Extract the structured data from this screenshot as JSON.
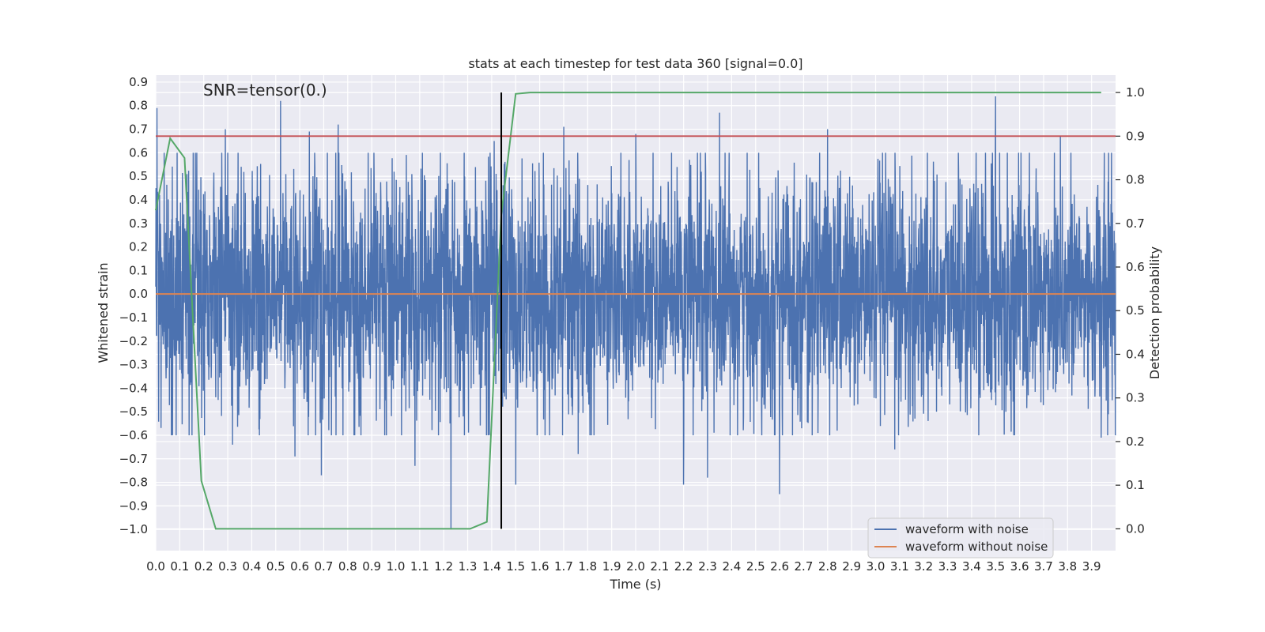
{
  "chart_data": {
    "type": "line",
    "title": "stats at each timestep for test data 360 [signal=0.0]",
    "xlabel": "Time (s)",
    "ylabel": "Whitened strain",
    "y2label": "Detection probability",
    "annotation": "SNR=tensor(0.)",
    "xlim": [
      0.0,
      4.0
    ],
    "ylim": [
      -1.09,
      0.93
    ],
    "y2lim": [
      -0.05,
      1.04
    ],
    "xticks": [
      "0.0",
      "0.1",
      "0.2",
      "0.3",
      "0.4",
      "0.5",
      "0.6",
      "0.7",
      "0.8",
      "0.9",
      "1.0",
      "1.1",
      "1.2",
      "1.3",
      "1.4",
      "1.5",
      "1.6",
      "1.7",
      "1.8",
      "1.9",
      "2.0",
      "2.1",
      "2.2",
      "2.3",
      "2.4",
      "2.5",
      "2.6",
      "2.7",
      "2.8",
      "2.9",
      "3.0",
      "3.1",
      "3.2",
      "3.3",
      "3.4",
      "3.5",
      "3.6",
      "3.7",
      "3.8",
      "3.9"
    ],
    "yticks": [
      "0.9",
      "0.8",
      "0.7",
      "0.6",
      "0.5",
      "0.4",
      "0.3",
      "0.2",
      "0.1",
      "0.0",
      "−0.1",
      "−0.2",
      "−0.3",
      "−0.4",
      "−0.5",
      "−0.6",
      "−0.7",
      "−0.8",
      "−0.9",
      "−1.0"
    ],
    "y2ticks": [
      "1.0",
      "0.9",
      "0.8",
      "0.7",
      "0.6",
      "0.5",
      "0.4",
      "0.3",
      "0.2",
      "0.1",
      "0.0"
    ],
    "grid": true,
    "legend_position": "bottom-right",
    "series": [
      {
        "name": "waveform with noise",
        "axis": "left",
        "color": "#4c72b0",
        "kind": "noise-trace",
        "x_range": [
          0.0,
          4.0
        ],
        "typical_amplitude": 0.3,
        "peaks": [
          {
            "x": 0.005,
            "y": 0.79
          },
          {
            "x": 0.29,
            "y": 0.7
          },
          {
            "x": 0.52,
            "y": 0.82
          },
          {
            "x": 0.64,
            "y": 0.69
          },
          {
            "x": 0.76,
            "y": 0.72
          },
          {
            "x": 1.41,
            "y": 0.65
          },
          {
            "x": 1.7,
            "y": 0.71
          },
          {
            "x": 2.0,
            "y": 0.68
          },
          {
            "x": 2.35,
            "y": 0.77
          },
          {
            "x": 2.8,
            "y": 0.7
          },
          {
            "x": 3.5,
            "y": 0.84
          },
          {
            "x": 3.77,
            "y": 0.67
          }
        ],
        "troughs": [
          {
            "x": 0.32,
            "y": -0.64
          },
          {
            "x": 0.58,
            "y": -0.69
          },
          {
            "x": 0.69,
            "y": -0.77
          },
          {
            "x": 1.08,
            "y": -0.73
          },
          {
            "x": 1.23,
            "y": -1.0
          },
          {
            "x": 1.5,
            "y": -0.81
          },
          {
            "x": 1.76,
            "y": -0.68
          },
          {
            "x": 2.2,
            "y": -0.81
          },
          {
            "x": 2.3,
            "y": -0.78
          },
          {
            "x": 2.6,
            "y": -0.85
          },
          {
            "x": 3.08,
            "y": -0.66
          },
          {
            "x": 3.94,
            "y": -0.61
          }
        ]
      },
      {
        "name": "waveform without noise",
        "axis": "left",
        "color": "#dd8452",
        "x": [
          0.0,
          4.0
        ],
        "y": [
          0.0,
          0.0
        ]
      },
      {
        "axis": "right",
        "color": "#55a868",
        "x": [
          0.0,
          0.06,
          0.12,
          0.19,
          0.25,
          1.31,
          1.38,
          1.44,
          1.5,
          1.56,
          3.94
        ],
        "y": [
          0.73,
          0.895,
          0.85,
          0.11,
          0.0,
          0.0,
          0.016,
          0.72,
          0.997,
          1.0,
          1.0
        ]
      }
    ],
    "reference_lines": [
      {
        "orientation": "horizontal",
        "axis": "right",
        "value": 0.9,
        "color": "#c44e52"
      },
      {
        "orientation": "vertical",
        "value": 1.44,
        "y_from": 0.0,
        "y_to": 1.0,
        "axis": "right",
        "color": "#000000"
      }
    ]
  }
}
